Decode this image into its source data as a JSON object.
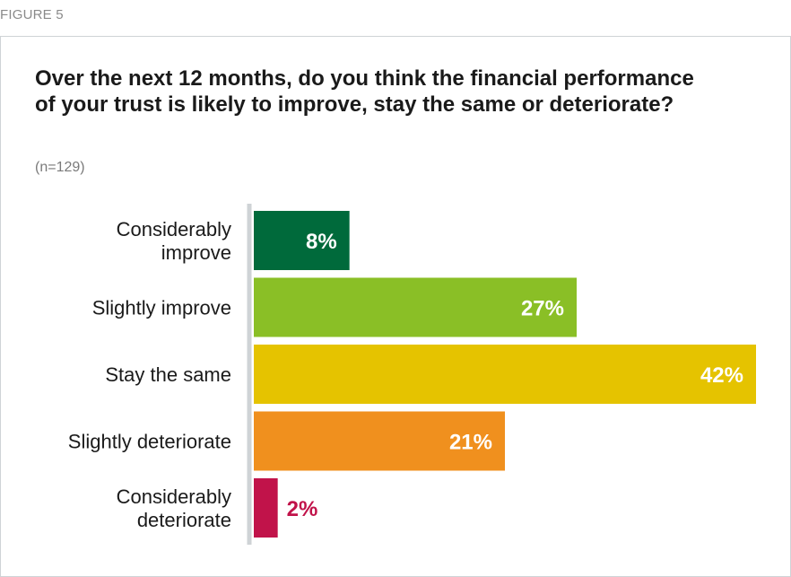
{
  "figure_label": "FIGURE 5",
  "chart_data": {
    "type": "bar",
    "orientation": "horizontal",
    "title": "Over the next 12 months, do you think the financial performance of your trust is likely to improve, stay the same or deteriorate?",
    "note": "(n=129)",
    "categories": [
      [
        "Considerably",
        "improve"
      ],
      [
        "Slightly improve"
      ],
      [
        "Stay the same"
      ],
      [
        "Slightly deteriorate"
      ],
      [
        "Considerably",
        "deteriorate"
      ]
    ],
    "values": [
      8,
      27,
      42,
      21,
      2
    ],
    "value_labels": [
      "8%",
      "27%",
      "42%",
      "21%",
      "2%"
    ],
    "colors": [
      "#006a3b",
      "#8abf26",
      "#e5c300",
      "#f0901e",
      "#c1134a"
    ],
    "label_colors": [
      "#ffffff",
      "#ffffff",
      "#ffffff",
      "#ffffff",
      "#c1134a"
    ],
    "xlim": [
      0,
      42
    ],
    "grid": false,
    "legend": "none"
  }
}
